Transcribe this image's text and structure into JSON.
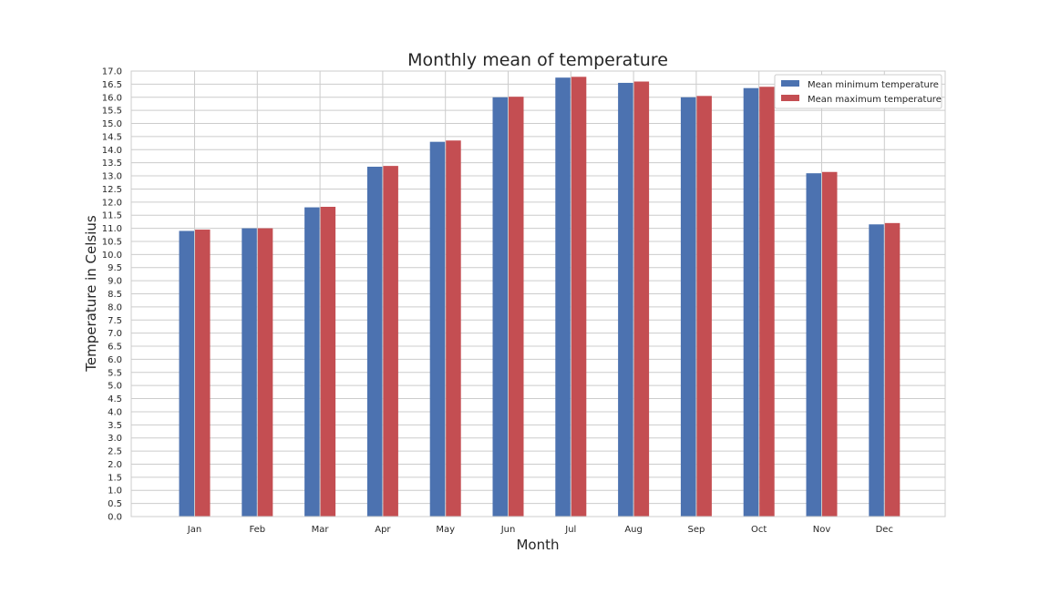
{
  "chart_data": {
    "type": "bar",
    "title": "Monthly mean of temperature",
    "xlabel": "Month",
    "ylabel": "Temperature in Celsius",
    "categories": [
      "Jan",
      "Feb",
      "Mar",
      "Apr",
      "May",
      "Jun",
      "Jul",
      "Aug",
      "Sep",
      "Oct",
      "Nov",
      "Dec"
    ],
    "series": [
      {
        "name": "Mean minimum temperature",
        "color": "#4c72b0",
        "values": [
          10.9,
          11.0,
          11.8,
          13.35,
          14.3,
          16.0,
          16.75,
          16.55,
          16.0,
          16.35,
          13.1,
          11.15
        ]
      },
      {
        "name": "Mean maximum temperature",
        "color": "#c44e52",
        "values": [
          10.95,
          11.0,
          11.82,
          13.38,
          14.35,
          16.02,
          16.78,
          16.6,
          16.05,
          16.4,
          13.15,
          11.2
        ]
      }
    ],
    "ylim": [
      0,
      17
    ],
    "ytick_step": 0.5,
    "grid": true,
    "legend_position": "top-right"
  }
}
